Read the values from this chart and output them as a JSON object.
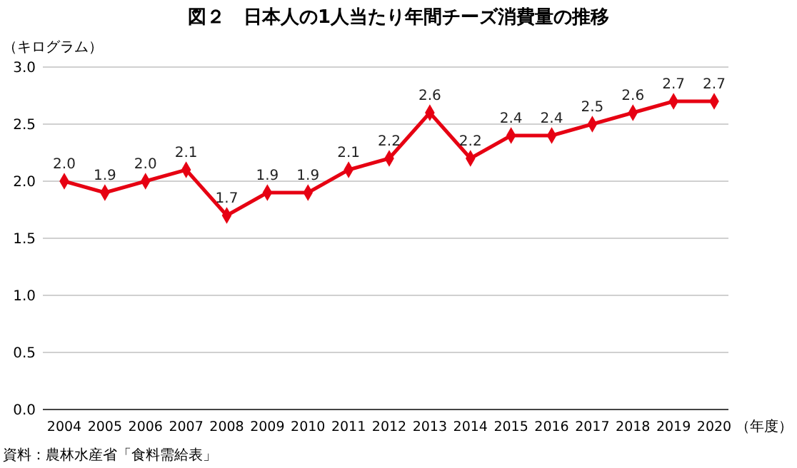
{
  "chart_data": {
    "type": "line",
    "title": "図２　日本人の1人当たり年間チーズ消費量の推移",
    "ylabel": "（キログラム）",
    "xlabel": "（年度）",
    "annotations": [
      "資料：農林水産省「食料需給表」"
    ],
    "categories": [
      "2004",
      "2005",
      "2006",
      "2007",
      "2008",
      "2009",
      "2010",
      "2011",
      "2012",
      "2013",
      "2014",
      "2015",
      "2016",
      "2017",
      "2018",
      "2019",
      "2020"
    ],
    "series": [
      {
        "color": "#e60012",
        "values": [
          2.0,
          1.9,
          2.0,
          2.1,
          1.7,
          1.9,
          1.9,
          2.1,
          2.2,
          2.6,
          2.2,
          2.4,
          2.4,
          2.5,
          2.6,
          2.7,
          2.7
        ],
        "value_labels": [
          "2.0",
          "1.9",
          "2.0",
          "2.1",
          "1.7",
          "1.9",
          "1.9",
          "2.1",
          "2.2",
          "2.6",
          "2.2",
          "2.4",
          "2.4",
          "2.5",
          "2.6",
          "2.7",
          "2.7"
        ]
      }
    ],
    "ylim": [
      0,
      3
    ],
    "yticks": [
      {
        "value": 0,
        "label": "0.0"
      },
      {
        "value": 0.5,
        "label": "0.5"
      },
      {
        "value": 1,
        "label": "1.0"
      },
      {
        "value": 1.5,
        "label": "1.5"
      },
      {
        "value": 2,
        "label": "2.0"
      },
      {
        "value": 2.5,
        "label": "2.5"
      },
      {
        "value": 3,
        "label": "3.0"
      }
    ],
    "grid": "y",
    "marker": "diamond",
    "line_style": "solid"
  }
}
